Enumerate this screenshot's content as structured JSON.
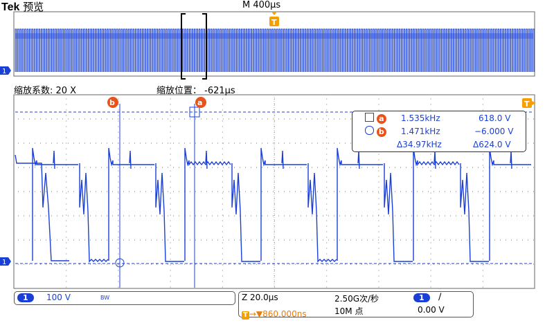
{
  "header": {
    "brand": "Tek",
    "mode": "预览",
    "timebase": "M 400µs",
    "trigger_marker": "T"
  },
  "zoom": {
    "factor_label": "缩放系数: 20 X",
    "position_label": "缩放位置：",
    "position_value": "-621µs"
  },
  "cursors": {
    "a_label": "a",
    "b_label": "b",
    "a_freq": "1.535kHz",
    "a_volt": "618.0 V",
    "b_freq": "1.471kHz",
    "b_volt": "−6.000 V",
    "delta_freq": "Δ34.97kHz",
    "delta_volt": "Δ624.0 V"
  },
  "channel": {
    "number": "1",
    "scale": "100 V",
    "bw_symbol": "BW",
    "ref_marker": "1"
  },
  "horizontal": {
    "zoom_scale": "Z 20.0µs",
    "trigger_pos": "→▼860.000ns",
    "sample_rate": "2.50G次/秒",
    "record_length": "10M 点"
  },
  "trigger": {
    "source": "1",
    "slope": "∕",
    "level": "0.00 V"
  },
  "colors": {
    "trace": "#1a3fd6",
    "trigger": "#f5a000",
    "cursor": "#e8531a"
  }
}
